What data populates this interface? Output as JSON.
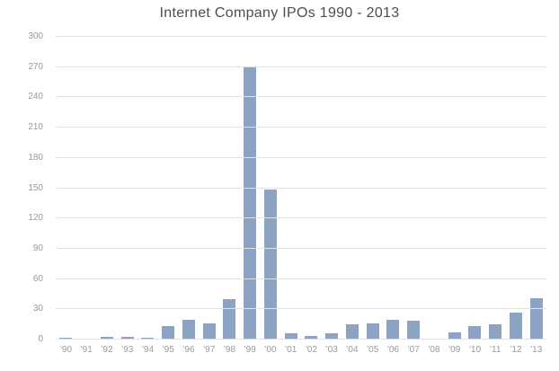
{
  "page": {
    "title": "Internet Company IPOs 1990 - 2013"
  },
  "colors": {
    "background": "#ffffff",
    "bar": "#8ca3c4",
    "gridline": "#e2e2e2",
    "title_text": "#4d4d4d",
    "tick_text": "#999999"
  },
  "chart_data": {
    "type": "bar",
    "title": "Internet Company IPOs 1990 - 2013",
    "categories": [
      "’90",
      "’91",
      "’92",
      "’93",
      "’94",
      "’95",
      "’96",
      "’97",
      "’98",
      "’99",
      "’00",
      "’01",
      "’02",
      "’03",
      "’04",
      "’05",
      "’06",
      "’07",
      "’08",
      "’09",
      "’10",
      "’11",
      "’12",
      "’13"
    ],
    "values": [
      2,
      1,
      3,
      3,
      2,
      13,
      20,
      16,
      40,
      271,
      149,
      6,
      4,
      6,
      15,
      16,
      20,
      19,
      1,
      7,
      13,
      15,
      27,
      41
    ],
    "xlabel": "",
    "ylabel": "",
    "ylim": [
      0,
      300
    ],
    "yticks": [
      0,
      30,
      60,
      90,
      120,
      150,
      180,
      210,
      240,
      270,
      300
    ],
    "grid": true,
    "legend": false,
    "legend_position": "none"
  }
}
